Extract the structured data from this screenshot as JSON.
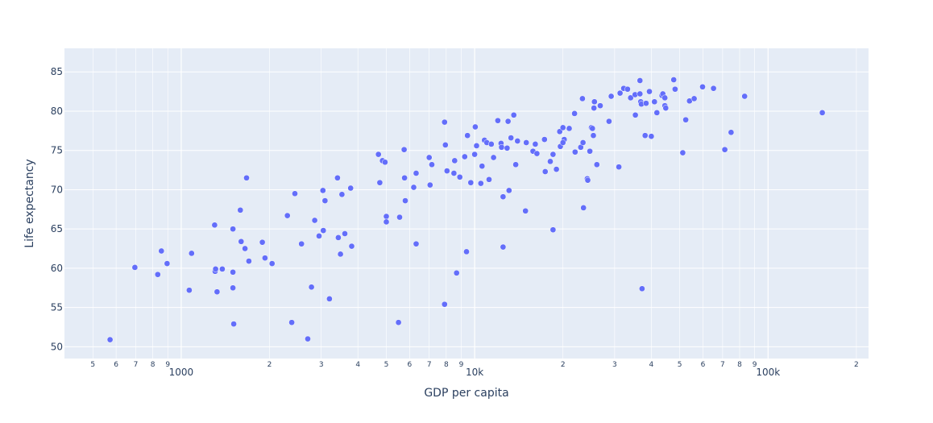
{
  "chart_data": {
    "type": "scatter",
    "title": "",
    "xlabel": "GDP per capita",
    "ylabel": "Life expectancy",
    "xscale": "log",
    "xlim": [
      400,
      220000
    ],
    "ylim": [
      48.5,
      88
    ],
    "grid": true,
    "legend": "none",
    "colors": {
      "plot_bg": "#e5ecf6",
      "grid": "#ffffff",
      "marker": "#636efa",
      "text": "#2a3f5f"
    },
    "x_major_ticks": [
      {
        "value": 1000,
        "label": "1000"
      },
      {
        "value": 10000,
        "label": "10k"
      },
      {
        "value": 100000,
        "label": "100k"
      }
    ],
    "x_minor_ticks": [
      {
        "value": 500,
        "label": "5"
      },
      {
        "value": 600,
        "label": "6"
      },
      {
        "value": 700,
        "label": "7"
      },
      {
        "value": 800,
        "label": "8"
      },
      {
        "value": 900,
        "label": "9"
      },
      {
        "value": 2000,
        "label": "2"
      },
      {
        "value": 3000,
        "label": "3"
      },
      {
        "value": 4000,
        "label": "4"
      },
      {
        "value": 5000,
        "label": "5"
      },
      {
        "value": 6000,
        "label": "6"
      },
      {
        "value": 7000,
        "label": "7"
      },
      {
        "value": 8000,
        "label": "8"
      },
      {
        "value": 9000,
        "label": "9"
      },
      {
        "value": 20000,
        "label": "2"
      },
      {
        "value": 30000,
        "label": "3"
      },
      {
        "value": 40000,
        "label": "4"
      },
      {
        "value": 50000,
        "label": "5"
      },
      {
        "value": 60000,
        "label": "6"
      },
      {
        "value": 70000,
        "label": "7"
      },
      {
        "value": 80000,
        "label": "8"
      },
      {
        "value": 90000,
        "label": "9"
      },
      {
        "value": 200000,
        "label": "2"
      }
    ],
    "y_ticks": [
      {
        "value": 50,
        "label": "50"
      },
      {
        "value": 55,
        "label": "55"
      },
      {
        "value": 60,
        "label": "60"
      },
      {
        "value": 65,
        "label": "65"
      },
      {
        "value": 70,
        "label": "70"
      },
      {
        "value": 75,
        "label": "75"
      },
      {
        "value": 80,
        "label": "80"
      },
      {
        "value": 85,
        "label": "85"
      }
    ],
    "points": [
      [
        572,
        50.9
      ],
      [
        695,
        60.1
      ],
      [
        832,
        59.2
      ],
      [
        856,
        62.2
      ],
      [
        895,
        60.6
      ],
      [
        1065,
        57.2
      ],
      [
        1085,
        61.9
      ],
      [
        1300,
        65.5
      ],
      [
        1305,
        59.6
      ],
      [
        1310,
        59.9
      ],
      [
        1325,
        57.0
      ],
      [
        1380,
        59.9
      ],
      [
        1500,
        65.0
      ],
      [
        1500,
        59.5
      ],
      [
        1500,
        57.5
      ],
      [
        1510,
        52.9
      ],
      [
        1590,
        67.4
      ],
      [
        1600,
        63.4
      ],
      [
        1650,
        62.5
      ],
      [
        1670,
        71.5
      ],
      [
        1700,
        60.9
      ],
      [
        1890,
        63.3
      ],
      [
        1930,
        61.3
      ],
      [
        2040,
        60.6
      ],
      [
        2300,
        66.7
      ],
      [
        2380,
        53.1
      ],
      [
        2440,
        69.5
      ],
      [
        2570,
        63.1
      ],
      [
        2700,
        51.0
      ],
      [
        2780,
        57.6
      ],
      [
        2850,
        66.1
      ],
      [
        2950,
        64.1
      ],
      [
        3040,
        69.9
      ],
      [
        3050,
        64.8
      ],
      [
        3090,
        68.6
      ],
      [
        3200,
        56.1
      ],
      [
        3410,
        71.5
      ],
      [
        3430,
        63.9
      ],
      [
        3490,
        61.8
      ],
      [
        3530,
        69.4
      ],
      [
        3610,
        64.4
      ],
      [
        3780,
        70.2
      ],
      [
        3810,
        62.8
      ],
      [
        4700,
        74.5
      ],
      [
        4750,
        70.9
      ],
      [
        4850,
        73.7
      ],
      [
        4950,
        73.5
      ],
      [
        5000,
        66.6
      ],
      [
        5000,
        65.9
      ],
      [
        5500,
        53.1
      ],
      [
        5550,
        66.5
      ],
      [
        5750,
        75.1
      ],
      [
        5770,
        71.5
      ],
      [
        5800,
        68.6
      ],
      [
        6200,
        70.3
      ],
      [
        6320,
        72.1
      ],
      [
        6320,
        63.1
      ],
      [
        7000,
        74.1
      ],
      [
        7050,
        70.6
      ],
      [
        7150,
        73.2
      ],
      [
        7900,
        78.6
      ],
      [
        7950,
        75.7
      ],
      [
        7900,
        55.4
      ],
      [
        8050,
        72.4
      ],
      [
        8550,
        73.7
      ],
      [
        8500,
        72.1
      ],
      [
        8680,
        59.4
      ],
      [
        8900,
        71.6
      ],
      [
        9250,
        74.2
      ],
      [
        9380,
        62.1
      ],
      [
        9450,
        76.9
      ],
      [
        9700,
        70.9
      ],
      [
        10050,
        78.0
      ],
      [
        10000,
        74.5
      ],
      [
        10150,
        75.6
      ],
      [
        10500,
        70.8
      ],
      [
        10600,
        73.0
      ],
      [
        10800,
        76.3
      ],
      [
        11000,
        76.0
      ],
      [
        11200,
        71.3
      ],
      [
        11400,
        75.8
      ],
      [
        11600,
        74.1
      ],
      [
        12000,
        78.8
      ],
      [
        12300,
        75.9
      ],
      [
        12350,
        75.4
      ],
      [
        12500,
        62.7
      ],
      [
        12500,
        69.1
      ],
      [
        12900,
        75.3
      ],
      [
        13000,
        78.7
      ],
      [
        13100,
        69.9
      ],
      [
        13300,
        76.6
      ],
      [
        13600,
        79.5
      ],
      [
        13800,
        73.2
      ],
      [
        14000,
        76.2
      ],
      [
        14900,
        67.3
      ],
      [
        15000,
        76.0
      ],
      [
        15800,
        74.9
      ],
      [
        16100,
        75.8
      ],
      [
        16300,
        74.6
      ],
      [
        17300,
        76.4
      ],
      [
        17400,
        72.3
      ],
      [
        18100,
        73.6
      ],
      [
        18500,
        64.9
      ],
      [
        18500,
        74.5
      ],
      [
        19000,
        72.6
      ],
      [
        19500,
        77.4
      ],
      [
        19600,
        75.5
      ],
      [
        20000,
        77.9
      ],
      [
        20200,
        76.4
      ],
      [
        20000,
        76.0
      ],
      [
        21000,
        77.8
      ],
      [
        21900,
        79.7
      ],
      [
        22000,
        74.8
      ],
      [
        23000,
        75.4
      ],
      [
        23300,
        81.6
      ],
      [
        23400,
        76.0
      ],
      [
        23500,
        67.7
      ],
      [
        24200,
        71.4
      ],
      [
        24300,
        71.2
      ],
      [
        24700,
        74.9
      ],
      [
        25000,
        77.9
      ],
      [
        25200,
        77.8
      ],
      [
        25400,
        76.9
      ],
      [
        25500,
        80.4
      ],
      [
        25600,
        81.2
      ],
      [
        26100,
        73.2
      ],
      [
        26800,
        80.7
      ],
      [
        28700,
        78.7
      ],
      [
        29200,
        81.9
      ],
      [
        31000,
        72.9
      ],
      [
        31300,
        82.3
      ],
      [
        32200,
        82.9
      ],
      [
        33200,
        82.8
      ],
      [
        34000,
        81.7
      ],
      [
        35200,
        82.1
      ],
      [
        35300,
        79.5
      ],
      [
        36600,
        83.9
      ],
      [
        36600,
        82.2
      ],
      [
        36800,
        81.2
      ],
      [
        37000,
        80.9
      ],
      [
        37200,
        57.4
      ],
      [
        38100,
        76.9
      ],
      [
        38400,
        81.0
      ],
      [
        39400,
        82.5
      ],
      [
        40000,
        76.8
      ],
      [
        41000,
        81.2
      ],
      [
        41800,
        79.8
      ],
      [
        43500,
        82.0
      ],
      [
        43800,
        82.2
      ],
      [
        44500,
        81.7
      ],
      [
        44500,
        80.7
      ],
      [
        44800,
        80.4
      ],
      [
        47700,
        84.0
      ],
      [
        48200,
        82.8
      ],
      [
        51200,
        74.7
      ],
      [
        52400,
        78.9
      ],
      [
        54000,
        81.3
      ],
      [
        56000,
        81.6
      ],
      [
        59800,
        83.1
      ],
      [
        65200,
        82.9
      ],
      [
        71200,
        75.1
      ],
      [
        74800,
        77.3
      ],
      [
        83200,
        81.9
      ],
      [
        153000,
        79.8
      ]
    ]
  }
}
